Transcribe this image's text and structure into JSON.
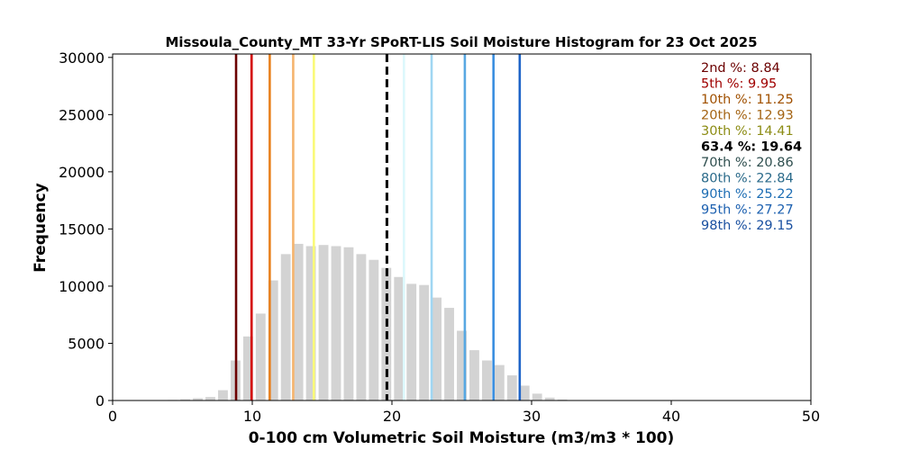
{
  "chart_data": {
    "type": "bar",
    "title": "Missoula_County_MT 33-Yr SPoRT-LIS Soil Moisture Histogram for 23 Oct 2025",
    "xlabel": "0-100 cm Volumetric Soil Moisture (m3/m3 * 100)",
    "ylabel": "Frequency",
    "xlim": [
      0,
      50
    ],
    "ylim": [
      0,
      30300
    ],
    "xticks": [
      0,
      10,
      20,
      30,
      40,
      50
    ],
    "yticks": [
      0,
      5000,
      10000,
      15000,
      20000,
      25000,
      30000
    ],
    "bar_color": "#d3d3d3",
    "bins": {
      "x": [
        4.3,
        5.2,
        6.1,
        7.0,
        7.9,
        8.8,
        9.7,
        10.6,
        11.5,
        12.4,
        13.3,
        14.2,
        15.1,
        16.0,
        16.9,
        17.8,
        18.7,
        19.6,
        20.5,
        21.4,
        22.3,
        23.2,
        24.1,
        25.0,
        25.9,
        26.8,
        27.7,
        28.6,
        29.5,
        30.4,
        31.3,
        32.2,
        33.1
      ],
      "values": [
        50,
        100,
        200,
        300,
        900,
        3500,
        5600,
        7600,
        10500,
        12800,
        13700,
        13500,
        13600,
        13500,
        13400,
        12800,
        12300,
        11600,
        10800,
        10200,
        10100,
        9000,
        8100,
        6100,
        4400,
        3500,
        3100,
        2200,
        1300,
        600,
        250,
        80,
        20
      ]
    },
    "percentiles": [
      {
        "label": "2nd %: 8.84",
        "value": 8.84,
        "color": "#6b0000",
        "text_color": "#6b0000"
      },
      {
        "label": "5th %: 9.95",
        "value": 9.95,
        "color": "#d40000",
        "text_color": "#a00000"
      },
      {
        "label": "10th %: 11.25",
        "value": 11.25,
        "color": "#e8801e",
        "text_color": "#a05000"
      },
      {
        "label": "20th %: 12.93",
        "value": 12.93,
        "color": "#f5b46e",
        "text_color": "#a46414"
      },
      {
        "label": "30th %: 14.41",
        "value": 14.41,
        "color": "#fafa78",
        "text_color": "#8c8c14"
      },
      {
        "label": "63.4 %: 19.64",
        "value": 19.64,
        "color": "#000000",
        "text_color": "#000000",
        "dashed": true,
        "bold": true
      },
      {
        "label": "70th %: 20.86",
        "value": 20.86,
        "color": "#dcf8fc",
        "text_color": "#2f4f4f"
      },
      {
        "label": "80th %: 22.84",
        "value": 22.84,
        "color": "#a0d6f2",
        "text_color": "#2a6a8a"
      },
      {
        "label": "90th %: 25.22",
        "value": 25.22,
        "color": "#58a8e2",
        "text_color": "#1e6eb4"
      },
      {
        "label": "95th %: 27.27",
        "value": 27.27,
        "color": "#3a8ee0",
        "text_color": "#1c60b0"
      },
      {
        "label": "98th %: 29.15",
        "value": 29.15,
        "color": "#1e64c8",
        "text_color": "#1a50a0"
      }
    ],
    "legend_position": "top-right",
    "grid": false
  }
}
